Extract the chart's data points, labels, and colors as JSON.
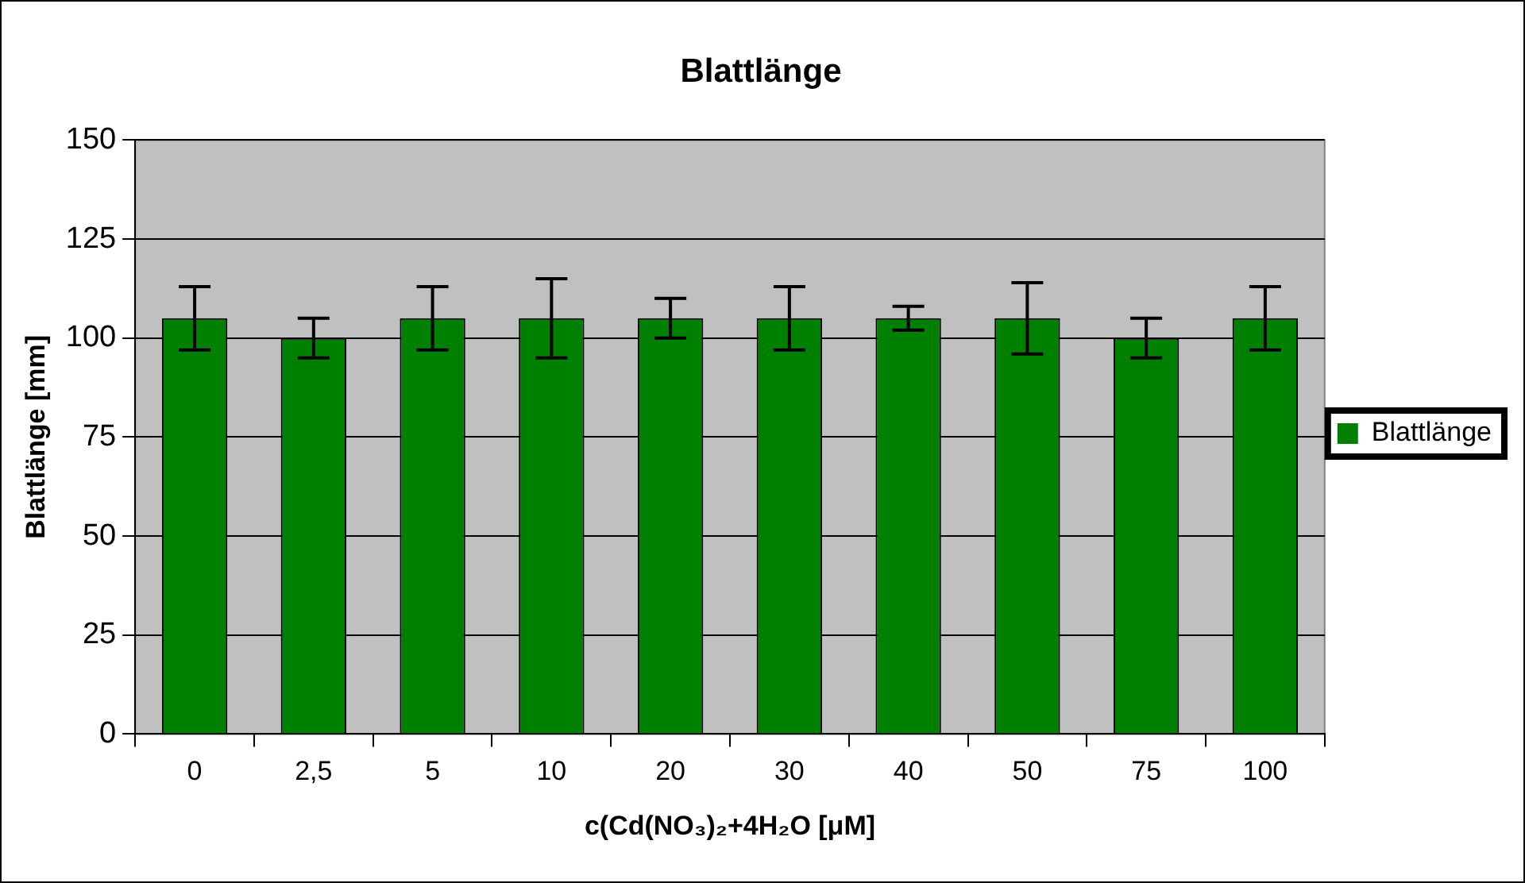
{
  "chart_data": {
    "type": "bar",
    "title": "Blattlänge",
    "xlabel": "c(Cd(NO₃)₂+4H₂O [μM]",
    "ylabel": "Blattlänge [mm]",
    "categories": [
      "0",
      "2,5",
      "5",
      "10",
      "20",
      "30",
      "40",
      "50",
      "75",
      "100"
    ],
    "series": [
      {
        "name": "Blattlänge",
        "color": "#008000",
        "values": [
          105,
          100,
          105,
          105,
          105,
          105,
          105,
          105,
          100,
          105
        ],
        "errors": [
          8,
          5,
          8,
          10,
          5,
          8,
          3,
          9,
          5,
          8
        ]
      }
    ],
    "ylim": [
      0,
      150
    ],
    "yticks": [
      0,
      25,
      50,
      75,
      100,
      125,
      150
    ],
    "grid": "y",
    "legend": "right"
  }
}
